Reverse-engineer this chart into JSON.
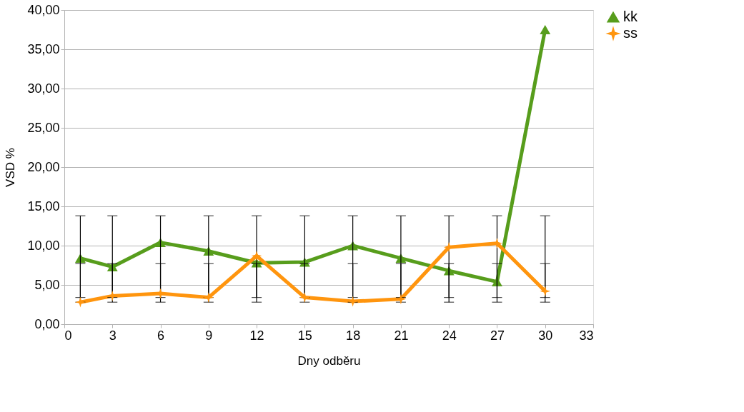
{
  "chart_data": {
    "type": "line",
    "xlabel": "Dny odběru",
    "ylabel": "VSD %",
    "x": [
      1,
      3,
      6,
      9,
      12,
      15,
      18,
      21,
      24,
      27,
      30
    ],
    "series": [
      {
        "name": "kk",
        "color": "#579d1c",
        "marker": "triangle",
        "values": [
          8.4,
          7.3,
          10.4,
          9.3,
          7.8,
          7.9,
          10.0,
          8.4,
          6.8,
          5.4,
          37.5
        ],
        "errors": [
          [
            3.4,
            7.7
          ],
          [
            3.4,
            7.7
          ],
          [
            3.4,
            7.7
          ],
          [
            3.4,
            7.7
          ],
          [
            3.4,
            7.7
          ],
          [
            3.4,
            7.7
          ],
          [
            3.4,
            7.7
          ],
          [
            3.4,
            7.7
          ],
          [
            3.4,
            7.7
          ],
          [
            3.4,
            7.7
          ],
          [
            3.4,
            7.7
          ]
        ]
      },
      {
        "name": "ss",
        "color": "#ff950e",
        "marker": "star",
        "values": [
          2.8,
          3.6,
          3.9,
          3.4,
          8.7,
          3.4,
          2.9,
          3.2,
          9.8,
          10.3,
          4.2
        ],
        "errors": [
          [
            2.8,
            13.8
          ],
          [
            2.8,
            13.8
          ],
          [
            2.8,
            13.8
          ],
          [
            2.8,
            13.8
          ],
          [
            2.8,
            13.8
          ],
          [
            2.8,
            13.8
          ],
          [
            2.8,
            13.8
          ],
          [
            2.8,
            13.8
          ],
          [
            2.8,
            13.8
          ],
          [
            2.8,
            13.8
          ],
          [
            2.8,
            13.8
          ]
        ]
      }
    ],
    "xlim": [
      0,
      33
    ],
    "xticks": [
      0,
      3,
      6,
      9,
      12,
      15,
      18,
      21,
      24,
      27,
      30,
      33
    ],
    "ylim": [
      0,
      40
    ],
    "yticks": [
      {
        "value": 0,
        "label": "0,00"
      },
      {
        "value": 5,
        "label": "5,00"
      },
      {
        "value": 10,
        "label": "10,00"
      },
      {
        "value": 15,
        "label": "15,00"
      },
      {
        "value": 20,
        "label": "20,00"
      },
      {
        "value": 25,
        "label": "25,00"
      },
      {
        "value": 30,
        "label": "30,00"
      },
      {
        "value": 35,
        "label": "35,00"
      },
      {
        "value": 40,
        "label": "40,00"
      }
    ],
    "grid": "y",
    "legend": "right",
    "line_style": "solid"
  }
}
